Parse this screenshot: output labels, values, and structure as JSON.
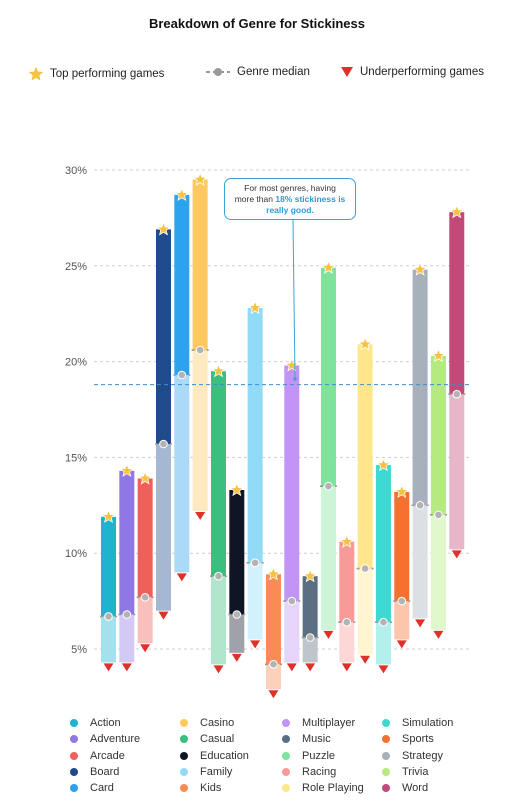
{
  "title": "Breakdown of Genre for Stickiness",
  "legend_top": {
    "top": "Top performing games",
    "median": "Genre median",
    "under": "Underperforming games"
  },
  "callout": {
    "line1": "For most genres, having",
    "line2_pre": "more than ",
    "line2_hl": "18% stickiness",
    "line2_post": " is",
    "line3": "really good."
  },
  "colors": {
    "star": "#f5c242",
    "median": "#9a9a9a",
    "under": "#e0302a",
    "reference": "#3a8fd0"
  },
  "chart_data": {
    "type": "range-bar",
    "title": "Breakdown of Genre for Stickiness",
    "ylim": [
      4,
      30
    ],
    "yticks": [
      5,
      10,
      15,
      20,
      25,
      30
    ],
    "ytick_labels": [
      "5%",
      "10%",
      "15%",
      "20%",
      "25%",
      "30%"
    ],
    "reference_line": 18.8,
    "grid": true,
    "genres": [
      {
        "name": "Action",
        "color": "#1fb3cf",
        "top": 11.9,
        "median": 6.7,
        "under": 4.3
      },
      {
        "name": "Adventure",
        "color": "#8f78e6",
        "top": 14.3,
        "median": 6.8,
        "under": 4.3
      },
      {
        "name": "Arcade",
        "color": "#f0605a",
        "top": 13.9,
        "median": 7.7,
        "under": 5.3
      },
      {
        "name": "Board",
        "color": "#1f4a8c",
        "top": 26.9,
        "median": 15.7,
        "under": 7.0
      },
      {
        "name": "Card",
        "color": "#2ca3ec",
        "top": 28.7,
        "median": 19.3,
        "under": 9.0
      },
      {
        "name": "Casino",
        "color": "#ffc960",
        "top": 29.5,
        "median": 20.6,
        "under": 12.2
      },
      {
        "name": "Casual",
        "color": "#3bbf7f",
        "top": 19.5,
        "median": 8.8,
        "under": 4.2
      },
      {
        "name": "Education",
        "color": "#0e1626",
        "top": 13.3,
        "median": 6.8,
        "under": 4.8
      },
      {
        "name": "Family",
        "color": "#92dbf7",
        "top": 22.8,
        "median": 9.5,
        "under": 5.5
      },
      {
        "name": "Kids",
        "color": "#f78d54",
        "top": 8.9,
        "median": 4.2,
        "under": 2.9
      },
      {
        "name": "Multiplayer",
        "color": "#c294f5",
        "top": 19.8,
        "median": 7.5,
        "under": 4.3
      },
      {
        "name": "Music",
        "color": "#5c6e82",
        "top": 8.8,
        "median": 5.6,
        "under": 4.3
      },
      {
        "name": "Puzzle",
        "color": "#7fe39b",
        "top": 24.9,
        "median": 13.5,
        "under": 6.0
      },
      {
        "name": "Racing",
        "color": "#f79a98",
        "top": 10.6,
        "median": 6.4,
        "under": 4.3
      },
      {
        "name": "Role Playing",
        "color": "#ffe68a",
        "top": 20.9,
        "median": 9.2,
        "under": 4.7
      },
      {
        "name": "Simulation",
        "color": "#3cdad0",
        "top": 14.6,
        "median": 6.4,
        "under": 4.2
      },
      {
        "name": "Sports",
        "color": "#f6712f",
        "top": 13.2,
        "median": 7.5,
        "under": 5.5
      },
      {
        "name": "Strategy",
        "color": "#a7b1bc",
        "top": 24.8,
        "median": 12.5,
        "under": 6.6
      },
      {
        "name": "Trivia",
        "color": "#b4ea7f",
        "top": 20.3,
        "median": 12.0,
        "under": 6.0
      },
      {
        "name": "Word",
        "color": "#c24a78",
        "top": 27.8,
        "median": 18.3,
        "under": 10.2
      }
    ]
  }
}
